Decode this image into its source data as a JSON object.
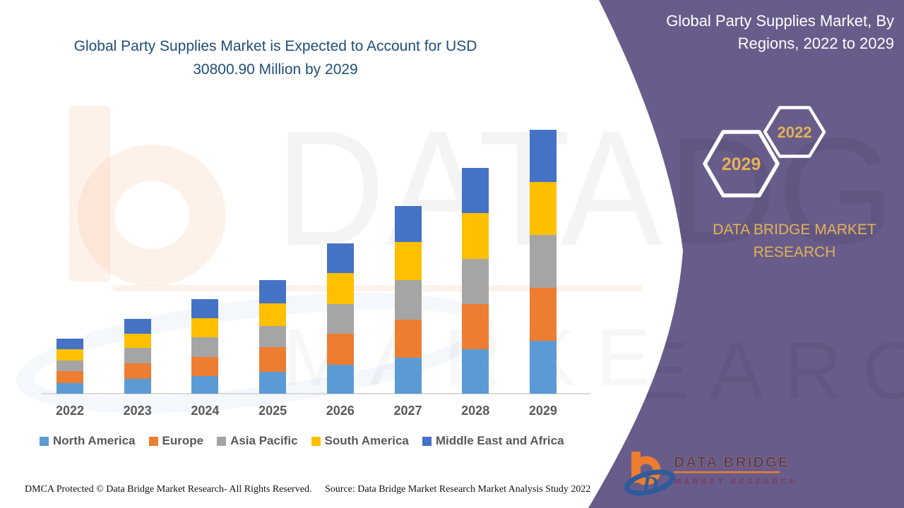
{
  "header": {
    "title_line1": "Global Party Supplies Market is Expected to Account for USD",
    "title_line2": "30800.90 Million by 2029"
  },
  "panel": {
    "title_line1": "Global Party Supplies Market, By",
    "title_line2": "Regions, 2022 to 2029",
    "hexagon_front_label": "2029",
    "hexagon_back_label": "2022",
    "brand_line1": "DATA BRIDGE MARKET",
    "brand_line2": "RESEARCH",
    "logo_name": "DATA BRIDGE",
    "logo_sub": "MARKET RESEARCH",
    "logo_monogram": "D"
  },
  "watermark": {
    "line1": "DATA BRIDGE",
    "line2": "MARKET RESEARCH"
  },
  "footer": {
    "left": "DMCA Protected © Data Bridge Market Research- All Rights Reserved.",
    "right": "Source: Data Bridge Market Research Market Analysis Study 2022"
  },
  "colors": {
    "accent_purple": "#685C8B",
    "accent_gold": "#E3B253",
    "title_navy": "#1F4E79",
    "label_gray": "#595959",
    "axis_gray": "#D9D9D9"
  },
  "chart_data": {
    "type": "bar",
    "stacked": true,
    "unit": "USD Million",
    "title": "Global Party Supplies Market, By Regions, 2022 to 2029",
    "xlabel": "",
    "ylabel": "",
    "categories": [
      "2022",
      "2023",
      "2024",
      "2025",
      "2026",
      "2027",
      "2028",
      "2029"
    ],
    "series": [
      {
        "name": "North America",
        "color": "#5B9BD5",
        "values": [
          1235,
          1729,
          2059,
          2553,
          3376,
          4200,
          5188,
          6176
        ]
      },
      {
        "name": "Europe",
        "color": "#ED7D31",
        "values": [
          1400,
          1812,
          2223,
          2882,
          3623,
          4447,
          5270,
          6176
        ]
      },
      {
        "name": "Asia Pacific",
        "color": "#A5A5A5",
        "values": [
          1235,
          1812,
          2306,
          2471,
          3459,
          4612,
          5270,
          6176
        ]
      },
      {
        "name": "South America",
        "color": "#FFC000",
        "values": [
          1318,
          1647,
          2223,
          2635,
          3623,
          4447,
          5353,
          6176
        ]
      },
      {
        "name": "Middle East and Africa",
        "color": "#4472C4",
        "values": [
          1235,
          1729,
          2223,
          2718,
          3459,
          4200,
          5270,
          6097
        ]
      }
    ],
    "totals_estimated": [
      6423,
      8729,
      11034,
      13259,
      17540,
      21906,
      26351,
      30800.9
    ],
    "highlight_total": {
      "year": "2029",
      "value": 30800.9
    },
    "ylim": [
      0,
      32000
    ],
    "grid": false,
    "y_axis_visible": false,
    "legend_position": "bottom",
    "note": "segment values estimated from bar heights; 2029 total anchored to 30800.90 USD Million"
  }
}
